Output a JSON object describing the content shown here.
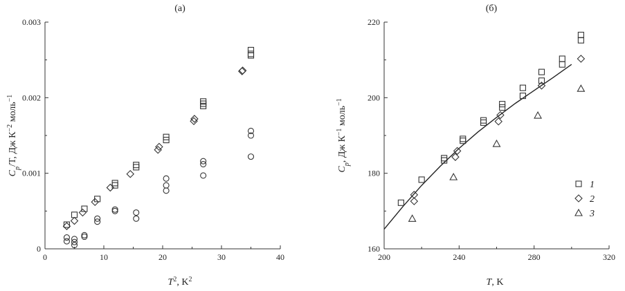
{
  "chart_data": [
    {
      "type": "scatter",
      "title": "(а)",
      "xlabel_main": "T",
      "xlabel_sup": "2",
      "xlabel_rest": ", K",
      "xlabel_sup2": "2",
      "ylabel": "C_p/T, Дж К^−2 моль^−1",
      "ylabel_main": "C",
      "ylabel_sub": "p",
      "ylabel_rest1": "/T, Дж К",
      "ylabel_sup1": "−2",
      "ylabel_rest2": " моль",
      "ylabel_sup2": "−1",
      "xlim": [
        0,
        40
      ],
      "ylim": [
        0,
        0.003
      ],
      "xticks": [
        0,
        10,
        20,
        30,
        40
      ],
      "xtick_labels": [
        "0",
        "10",
        "20",
        "30",
        "40"
      ],
      "yticks": [
        0,
        0.001,
        0.002,
        0.003
      ],
      "ytick_labels": [
        "0",
        "0.001",
        "0.002",
        "0.003"
      ],
      "series": [
        {
          "marker": "square",
          "points": [
            [
              3.7,
              0.00032
            ],
            [
              5.0,
              0.00045
            ],
            [
              6.7,
              0.00053
            ],
            [
              8.9,
              0.00066
            ],
            [
              11.9,
              0.00084
            ],
            [
              11.9,
              0.00087
            ],
            [
              15.5,
              0.00108
            ],
            [
              15.5,
              0.00111
            ],
            [
              20.6,
              0.00144
            ],
            [
              20.6,
              0.00148
            ],
            [
              26.9,
              0.00189
            ],
            [
              26.9,
              0.00192
            ],
            [
              26.9,
              0.00195
            ],
            [
              35.0,
              0.00256
            ],
            [
              35.0,
              0.00258
            ],
            [
              35.0,
              0.00263
            ]
          ]
        },
        {
          "marker": "diamond",
          "points": [
            [
              3.7,
              0.0003
            ],
            [
              5.0,
              0.00037
            ],
            [
              6.4,
              0.00048
            ],
            [
              8.5,
              0.00062
            ],
            [
              11.1,
              0.00081
            ],
            [
              14.5,
              0.00099
            ],
            [
              19.2,
              0.00131
            ],
            [
              19.4,
              0.00135
            ],
            [
              25.3,
              0.00169
            ],
            [
              25.4,
              0.00172
            ],
            [
              33.5,
              0.00235
            ],
            [
              33.6,
              0.00236
            ]
          ]
        },
        {
          "marker": "circle",
          "points": [
            [
              3.7,
              0.0001
            ],
            [
              3.7,
              0.00015
            ],
            [
              5.0,
              5e-05
            ],
            [
              5.0,
              9e-05
            ],
            [
              5.0,
              0.00013
            ],
            [
              6.7,
              0.00016
            ],
            [
              6.7,
              0.00018
            ],
            [
              8.9,
              0.00036
            ],
            [
              8.9,
              0.0004
            ],
            [
              11.9,
              0.0005
            ],
            [
              11.9,
              0.00052
            ],
            [
              15.5,
              0.0004
            ],
            [
              15.5,
              0.00048
            ],
            [
              20.6,
              0.00077
            ],
            [
              20.6,
              0.00084
            ],
            [
              20.6,
              0.00093
            ],
            [
              26.9,
              0.00097
            ],
            [
              26.9,
              0.00112
            ],
            [
              26.9,
              0.00116
            ],
            [
              35.0,
              0.00122
            ],
            [
              35.0,
              0.0015
            ],
            [
              35.0,
              0.00156
            ]
          ]
        }
      ]
    },
    {
      "type": "scatter",
      "title": "(б)",
      "xlabel_main": "T",
      "xlabel_rest": ", K",
      "ylabel": "C_p, Дж К^−1 моль^−1",
      "ylabel_main": "C",
      "ylabel_sub": "p",
      "ylabel_rest1": ", Дж К",
      "ylabel_sup1": "−1",
      "ylabel_rest2": " моль",
      "ylabel_sup2": "−1",
      "xlim": [
        200,
        320
      ],
      "ylim": [
        160,
        220
      ],
      "xticks": [
        200,
        240,
        280,
        320
      ],
      "xtick_labels": [
        "200",
        "240",
        "280",
        "320"
      ],
      "yticks": [
        160,
        180,
        200,
        220
      ],
      "ytick_labels": [
        "160",
        "180",
        "200",
        "220"
      ],
      "legend": [
        "1",
        "2",
        "3"
      ],
      "legend_position": "right",
      "series": [
        {
          "name": "1",
          "marker": "square",
          "points": [
            [
              209,
              172.2
            ],
            [
              220,
              178.3
            ],
            [
              232,
              183.4
            ],
            [
              232,
              184.0
            ],
            [
              242,
              188.6
            ],
            [
              242,
              189.1
            ],
            [
              253,
              193.4
            ],
            [
              253,
              194.0
            ],
            [
              263,
              197.4
            ],
            [
              263,
              198.3
            ],
            [
              274,
              200.5
            ],
            [
              274,
              202.6
            ],
            [
              284,
              204.5
            ],
            [
              284,
              206.8
            ],
            [
              295,
              208.8
            ],
            [
              295,
              210.3
            ],
            [
              305,
              215.2
            ],
            [
              305,
              216.6
            ]
          ]
        },
        {
          "name": "2",
          "marker": "diamond",
          "points": [
            [
              216,
              172.6
            ],
            [
              216,
              174.3
            ],
            [
              238,
              184.3
            ],
            [
              239,
              185.9
            ],
            [
              261,
              193.7
            ],
            [
              262,
              195.4
            ],
            [
              284,
              203.2
            ],
            [
              305,
              210.3
            ]
          ]
        },
        {
          "name": "3",
          "marker": "triangle",
          "points": [
            [
              215,
              168.0
            ],
            [
              237,
              179.0
            ],
            [
              260,
              187.8
            ],
            [
              282,
              195.3
            ],
            [
              305,
              202.4
            ]
          ]
        }
      ],
      "fit_line": [
        [
          200,
          165.2
        ],
        [
          210,
          171.2
        ],
        [
          220,
          176.8
        ],
        [
          230,
          181.9
        ],
        [
          240,
          186.6
        ],
        [
          250,
          190.9
        ],
        [
          260,
          194.8
        ],
        [
          270,
          198.5
        ],
        [
          280,
          201.9
        ],
        [
          290,
          205.3
        ],
        [
          300,
          208.8
        ]
      ]
    }
  ]
}
